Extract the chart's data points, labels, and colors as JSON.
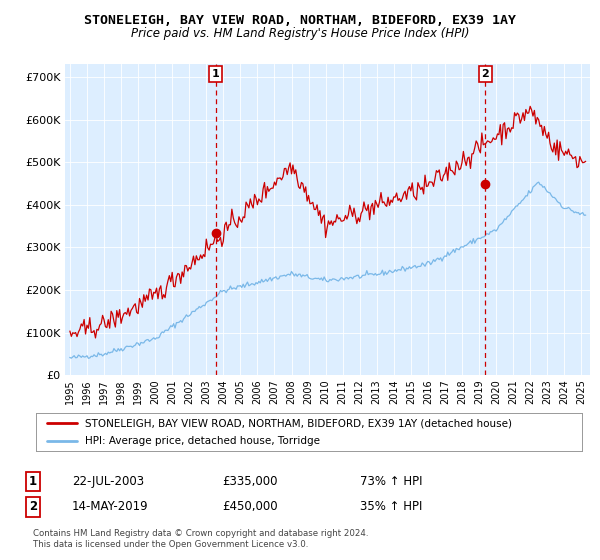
{
  "title": "STONELEIGH, BAY VIEW ROAD, NORTHAM, BIDEFORD, EX39 1AY",
  "subtitle": "Price paid vs. HM Land Registry's House Price Index (HPI)",
  "legend_line1": "STONELEIGH, BAY VIEW ROAD, NORTHAM, BIDEFORD, EX39 1AY (detached house)",
  "legend_line2": "HPI: Average price, detached house, Torridge",
  "annotation1_label": "1",
  "annotation1_date": "22-JUL-2003",
  "annotation1_price": "£335,000",
  "annotation1_hpi": "73% ↑ HPI",
  "annotation2_label": "2",
  "annotation2_date": "14-MAY-2019",
  "annotation2_price": "£450,000",
  "annotation2_hpi": "35% ↑ HPI",
  "copyright": "Contains HM Land Registry data © Crown copyright and database right 2024.\nThis data is licensed under the Open Government Licence v3.0.",
  "hpi_color": "#7ab8e8",
  "price_color": "#cc0000",
  "marker_dot_color": "#cc0000",
  "marker1_x": 2003.55,
  "marker1_y": 335000,
  "marker2_x": 2019.37,
  "marker2_y": 450000,
  "ylim": [
    0,
    730000
  ],
  "xlim_start": 1994.7,
  "xlim_end": 2025.5,
  "yticks": [
    0,
    100000,
    200000,
    300000,
    400000,
    500000,
    600000,
    700000
  ],
  "ytick_labels": [
    "£0",
    "£100K",
    "£200K",
    "£300K",
    "£400K",
    "£500K",
    "£600K",
    "£700K"
  ],
  "xticks": [
    1995,
    1996,
    1997,
    1998,
    1999,
    2000,
    2001,
    2002,
    2003,
    2004,
    2005,
    2006,
    2007,
    2008,
    2009,
    2010,
    2011,
    2012,
    2013,
    2014,
    2015,
    2016,
    2017,
    2018,
    2019,
    2020,
    2021,
    2022,
    2023,
    2024,
    2025
  ],
  "bg_color": "#ffffff",
  "plot_bg_color": "#ddeeff",
  "grid_color": "#ffffff"
}
